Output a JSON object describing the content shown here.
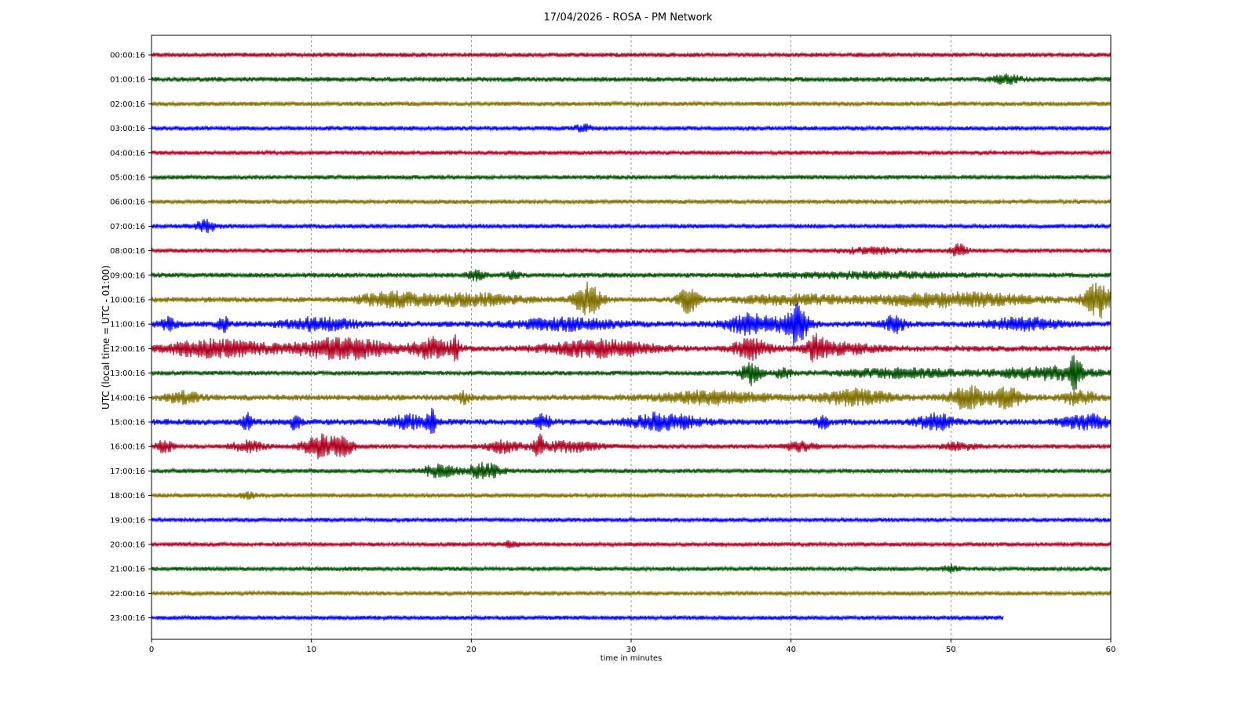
{
  "chart_data": {
    "type": "line",
    "title": "17/04/2026 - ROSA - PM Network",
    "xlabel": "time in minutes",
    "ylabel": "UTC (local time = UTC - 01:00)",
    "xlim": [
      0,
      60
    ],
    "x_ticks": [
      0,
      10,
      20,
      30,
      40,
      50,
      60
    ],
    "grid": "vertical dashed",
    "colors": [
      "#b00020",
      "#005000",
      "#807000",
      "#0000ff"
    ],
    "series": [
      {
        "name": "00:00:16",
        "end_min": 60,
        "base_amp": 3,
        "bursts": []
      },
      {
        "name": "01:00:16",
        "end_min": 60,
        "base_amp": 3.2,
        "bursts": [
          [
            53.5,
            0.8,
            5
          ]
        ]
      },
      {
        "name": "02:00:16",
        "end_min": 60,
        "base_amp": 2.8,
        "bursts": []
      },
      {
        "name": "03:00:16",
        "end_min": 60,
        "base_amp": 3,
        "bursts": [
          [
            27,
            0.5,
            4
          ]
        ]
      },
      {
        "name": "04:00:16",
        "end_min": 60,
        "base_amp": 2.8,
        "bursts": []
      },
      {
        "name": "05:00:16",
        "end_min": 60,
        "base_amp": 2.8,
        "bursts": []
      },
      {
        "name": "06:00:16",
        "end_min": 60,
        "base_amp": 2.8,
        "bursts": []
      },
      {
        "name": "07:00:16",
        "end_min": 60,
        "base_amp": 3,
        "bursts": [
          [
            3.4,
            0.6,
            7
          ]
        ]
      },
      {
        "name": "08:00:16",
        "end_min": 60,
        "base_amp": 2.8,
        "bursts": [
          [
            45,
            2,
            3
          ],
          [
            50.5,
            0.5,
            7
          ]
        ]
      },
      {
        "name": "09:00:16",
        "end_min": 60,
        "base_amp": 3.2,
        "bursts": [
          [
            20.3,
            0.5,
            6
          ],
          [
            22.5,
            0.5,
            4
          ],
          [
            45,
            5,
            3
          ]
        ]
      },
      {
        "name": "10:00:16",
        "end_min": 60,
        "base_amp": 3.5,
        "bursts": [
          [
            15,
            2,
            8
          ],
          [
            20,
            3,
            7
          ],
          [
            27.3,
            0.8,
            20
          ],
          [
            33.6,
            0.6,
            17
          ],
          [
            40,
            3,
            5
          ],
          [
            50,
            5,
            8
          ],
          [
            59.2,
            0.8,
            22
          ]
        ]
      },
      {
        "name": "11:00:16",
        "end_min": 60,
        "base_amp": 4,
        "bursts": [
          [
            1,
            0.5,
            7
          ],
          [
            4.5,
            0.3,
            9
          ],
          [
            10.5,
            2,
            7
          ],
          [
            26,
            3,
            6
          ],
          [
            37.5,
            1.5,
            12
          ],
          [
            40.3,
            0.8,
            24
          ],
          [
            46.5,
            0.6,
            10
          ],
          [
            54.5,
            2,
            7
          ]
        ]
      },
      {
        "name": "12:00:16",
        "end_min": 60,
        "base_amp": 4,
        "bursts": [
          [
            4,
            3,
            10
          ],
          [
            12,
            3,
            12
          ],
          [
            17.5,
            1,
            12
          ],
          [
            19,
            0.3,
            14
          ],
          [
            28,
            3,
            10
          ],
          [
            37.5,
            1,
            12
          ],
          [
            41.6,
            0.5,
            16
          ],
          [
            43,
            2,
            6
          ]
        ]
      },
      {
        "name": "13:00:16",
        "end_min": 60,
        "base_amp": 3,
        "bursts": [
          [
            37.5,
            0.6,
            14
          ],
          [
            39.5,
            0.5,
            6
          ],
          [
            47,
            4,
            5
          ],
          [
            56,
            3,
            8
          ],
          [
            57.8,
            0.4,
            18
          ]
        ]
      },
      {
        "name": "14:00:16",
        "end_min": 60,
        "base_amp": 4,
        "bursts": [
          [
            2,
            1,
            6
          ],
          [
            19.5,
            0.4,
            6
          ],
          [
            35,
            3,
            7
          ],
          [
            44,
            2,
            9
          ],
          [
            51,
            1,
            14
          ],
          [
            53.5,
            1,
            12
          ],
          [
            58,
            1,
            8
          ]
        ]
      },
      {
        "name": "15:00:16",
        "end_min": 60,
        "base_amp": 4,
        "bursts": [
          [
            6,
            0.3,
            10
          ],
          [
            9,
            0.3,
            9
          ],
          [
            16,
            1,
            8
          ],
          [
            17.5,
            0.3,
            14
          ],
          [
            24.5,
            0.5,
            8
          ],
          [
            32,
            2,
            10
          ],
          [
            42,
            0.4,
            7
          ],
          [
            49,
            1,
            10
          ],
          [
            58.5,
            1.5,
            8
          ]
        ]
      },
      {
        "name": "16:00:16",
        "end_min": 60,
        "base_amp": 3,
        "bursts": [
          [
            0.8,
            0.5,
            8
          ],
          [
            6,
            1,
            6
          ],
          [
            10.5,
            1,
            14
          ],
          [
            12,
            0.7,
            10
          ],
          [
            22,
            1,
            7
          ],
          [
            24.2,
            0.3,
            14
          ],
          [
            26,
            2,
            6
          ],
          [
            40.5,
            1,
            5
          ],
          [
            50.5,
            1,
            4
          ]
        ]
      },
      {
        "name": "17:00:16",
        "end_min": 60,
        "base_amp": 2.8,
        "bursts": [
          [
            18,
            1,
            8
          ],
          [
            20.8,
            1,
            10
          ]
        ]
      },
      {
        "name": "18:00:16",
        "end_min": 60,
        "base_amp": 2.8,
        "bursts": [
          [
            6,
            0.5,
            4
          ]
        ]
      },
      {
        "name": "19:00:16",
        "end_min": 60,
        "base_amp": 2.8,
        "bursts": []
      },
      {
        "name": "20:00:16",
        "end_min": 60,
        "base_amp": 2.8,
        "bursts": [
          [
            22.5,
            0.4,
            4
          ]
        ]
      },
      {
        "name": "21:00:16",
        "end_min": 60,
        "base_amp": 2.8,
        "bursts": [
          [
            50,
            0.4,
            4
          ]
        ]
      },
      {
        "name": "22:00:16",
        "end_min": 60,
        "base_amp": 2.8,
        "bursts": []
      },
      {
        "name": "23:00:16",
        "end_min": 53.3,
        "base_amp": 2.8,
        "bursts": []
      }
    ]
  }
}
